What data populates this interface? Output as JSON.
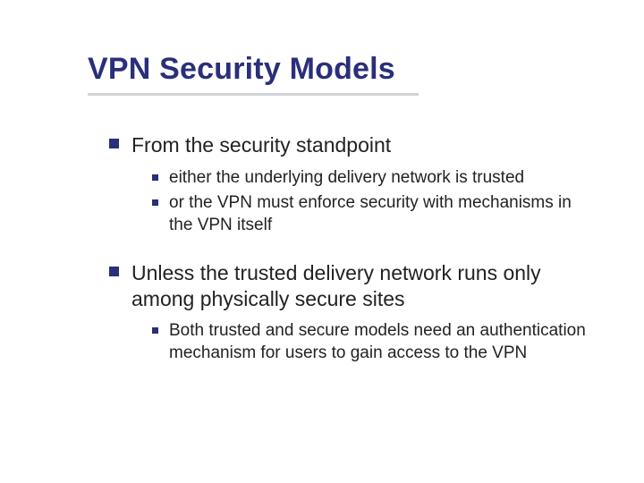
{
  "colors": {
    "title": "#2a2f7a",
    "bullet": "#2a2f7a",
    "text": "#222222",
    "underline": "#9aa0a6",
    "background": "#ffffff"
  },
  "typography": {
    "family": "Verdana",
    "title_fontsize": 34,
    "title_weight": 700,
    "lvl1_fontsize": 23,
    "lvl2_fontsize": 19
  },
  "title": "VPN Security Models",
  "bullets": [
    {
      "text": "From the security standpoint",
      "children": [
        {
          "text": "either the underlying delivery network is trusted"
        },
        {
          "text": "or the VPN must enforce security with mechanisms in the VPN itself"
        }
      ]
    },
    {
      "text": "Unless the trusted delivery network runs only among physically secure sites",
      "children": [
        {
          "text": "Both trusted and secure models need an authentication mechanism for users to gain access to the VPN"
        }
      ]
    }
  ]
}
